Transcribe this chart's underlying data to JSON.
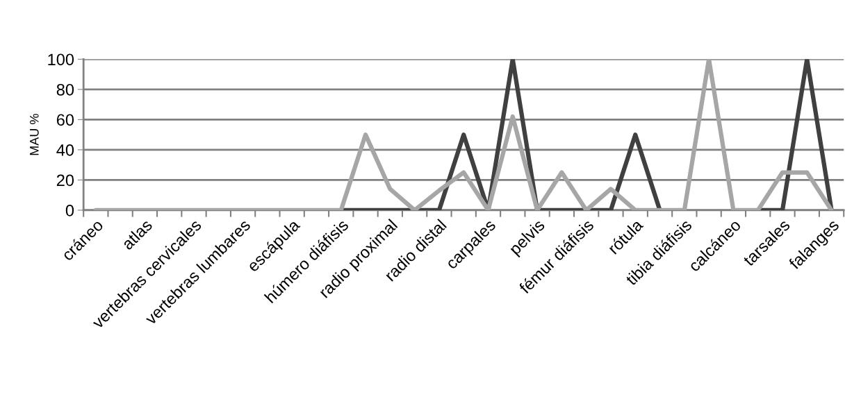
{
  "chart_data": {
    "type": "line",
    "ylabel": "MAU %",
    "categories": [
      "cráneo",
      null,
      "atlas",
      null,
      "vertebras cervicales",
      null,
      "vertebras lumbares",
      null,
      "escápula",
      null,
      "húmero diáfisis",
      null,
      "radio proximal",
      null,
      "radio distal",
      null,
      "carpales",
      null,
      "pelvis",
      null,
      "fémur diáfisis",
      null,
      "rótula",
      null,
      "tibia diáfisis",
      null,
      "calcáneo",
      null,
      "tarsales",
      null,
      "falanges"
    ],
    "series": [
      {
        "color": "#404040",
        "values": [
          null,
          null,
          null,
          null,
          null,
          null,
          null,
          null,
          null,
          null,
          0,
          0,
          0,
          0,
          0,
          50,
          0,
          100,
          0,
          0,
          0,
          0,
          50,
          0,
          null,
          null,
          null,
          0,
          0,
          100,
          0
        ]
      },
      {
        "color": "#a6a6a6",
        "values": [
          0,
          0,
          0,
          0,
          0,
          0,
          0,
          0,
          0,
          0,
          0,
          50,
          14,
          0,
          13,
          25,
          0,
          62,
          0,
          25,
          0,
          14,
          0,
          0,
          0,
          100,
          0,
          0,
          25,
          25,
          0
        ]
      }
    ],
    "ylim": [
      0,
      100
    ],
    "yticks": [
      0,
      20,
      40,
      60,
      80,
      100
    ],
    "grid": "y",
    "marker": "none",
    "line_style": "solid"
  }
}
